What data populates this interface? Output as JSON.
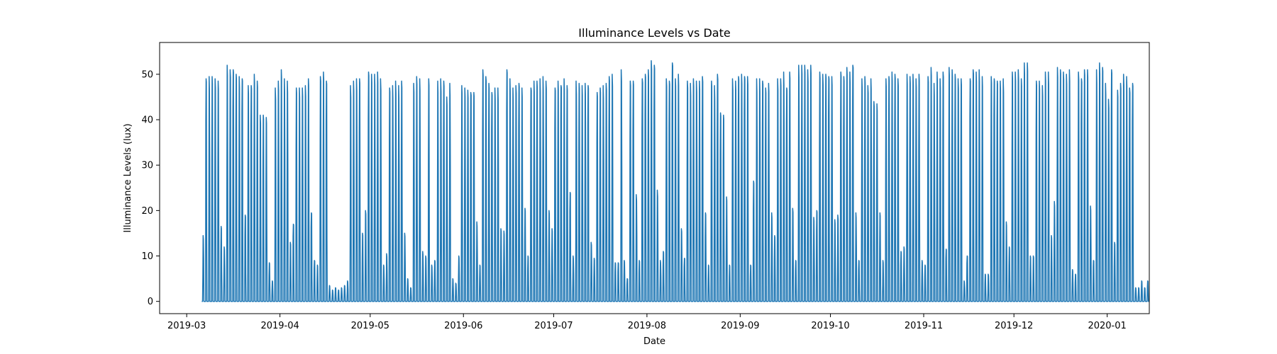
{
  "chart_data": {
    "type": "line",
    "title": "Illuminance Levels vs Date",
    "xlabel": "Date",
    "ylabel": "Illuminance Levels (lux)",
    "xlim": [
      "2019-02-20",
      "2020-01-15"
    ],
    "ylim": [
      -2.7,
      57
    ],
    "x_ticks": [
      "2019-03",
      "2019-04",
      "2019-05",
      "2019-06",
      "2019-07",
      "2019-08",
      "2019-09",
      "2019-10",
      "2019-11",
      "2019-12",
      "2020-01"
    ],
    "y_ticks": [
      0,
      10,
      20,
      30,
      40,
      50
    ],
    "grid": false,
    "series": [
      {
        "color": "#1f77b4",
        "daily_peak": {
          "start": "2019-03-06",
          "end": "2019-12-31",
          "values": [
            14.5,
            49,
            49.5,
            49.5,
            49,
            48.5,
            16.5,
            12,
            52,
            51,
            51,
            50,
            49.5,
            49,
            19,
            47.5,
            47.5,
            50,
            48.5,
            41,
            41,
            40.5,
            8.5,
            4.5,
            47,
            48.5,
            51,
            49,
            48.5,
            13,
            17,
            47,
            47,
            47,
            47.5,
            49,
            19.5,
            9,
            8,
            49.5,
            50.5,
            48.5,
            3.5,
            2.5,
            3,
            2.5,
            3,
            3.5,
            4.5,
            47.5,
            48.5,
            49,
            49,
            15,
            20,
            50.5,
            50,
            50,
            50.5,
            49,
            8,
            10.5,
            47,
            47.5,
            48.5,
            47.5,
            48.5,
            15,
            5,
            3,
            48,
            49.5,
            49,
            11,
            10,
            49,
            8,
            9,
            48.5,
            49,
            48.5,
            45,
            48,
            5,
            4,
            10,
            47.5,
            47,
            46.5,
            46,
            46,
            17.5,
            8,
            51,
            49.5,
            48,
            46,
            47,
            47,
            16,
            15.5,
            51,
            49,
            47,
            47.5,
            48,
            47,
            20.5,
            10,
            47,
            48.5,
            48.5,
            49,
            49.5,
            48.5,
            20,
            16,
            47,
            48.5,
            47.5,
            49,
            47.5,
            24,
            10,
            48.5,
            48,
            47.5,
            48,
            47.5,
            13,
            9.5,
            46,
            47,
            47.5,
            48,
            49.5,
            50,
            8.5,
            8.5,
            51,
            9,
            5,
            48.5,
            48.5,
            23.5,
            9,
            49,
            50,
            51,
            53,
            52,
            24.5,
            9,
            11,
            49,
            48.5,
            52.5,
            49,
            50,
            16,
            9.5,
            48.5,
            48,
            49,
            48.5,
            48.5,
            49.5,
            19.5,
            8,
            48.5,
            47.5,
            50,
            41.5,
            41,
            23,
            8,
            49,
            48.5,
            49.5,
            50,
            49.5,
            49.5,
            8,
            26.5,
            49,
            49,
            48.5,
            47,
            48,
            19.5,
            14.5,
            49,
            49,
            50.5,
            47,
            50.5,
            20.5,
            9,
            52,
            52,
            52,
            51,
            52,
            18.5,
            20,
            50.5,
            50,
            50,
            49.5,
            49.5,
            18,
            19,
            50.5,
            49.5,
            51.5,
            50.5,
            52,
            19.5,
            9,
            49,
            49.5,
            47.5,
            49,
            44,
            43.5,
            19.5,
            9,
            49,
            49.5,
            50.5,
            50,
            49,
            11,
            12,
            50,
            49.5,
            50,
            49,
            50,
            9,
            8,
            49.5,
            51.5,
            48,
            50.5,
            49,
            50.5,
            11.5,
            51.5,
            51,
            50,
            49,
            49,
            4.5,
            10,
            49,
            51,
            50.5,
            51,
            49.5,
            6,
            6,
            49.5,
            49,
            48.5,
            48.5,
            49,
            17.5,
            12,
            50.5,
            50.5,
            51,
            49,
            52.5,
            52.5,
            10,
            10,
            48.5,
            48.5,
            47.5,
            50.5,
            50.5,
            14.5,
            22,
            51.5,
            51,
            50.5,
            50,
            51,
            7,
            6,
            50.5,
            49,
            51,
            51,
            21,
            9,
            51,
            52.5,
            51.5,
            48,
            44.5,
            51,
            13,
            46.5,
            48,
            50,
            49.5,
            47,
            48,
            3,
            3,
            4.5,
            3,
            4.5
          ]
        }
      }
    ]
  }
}
